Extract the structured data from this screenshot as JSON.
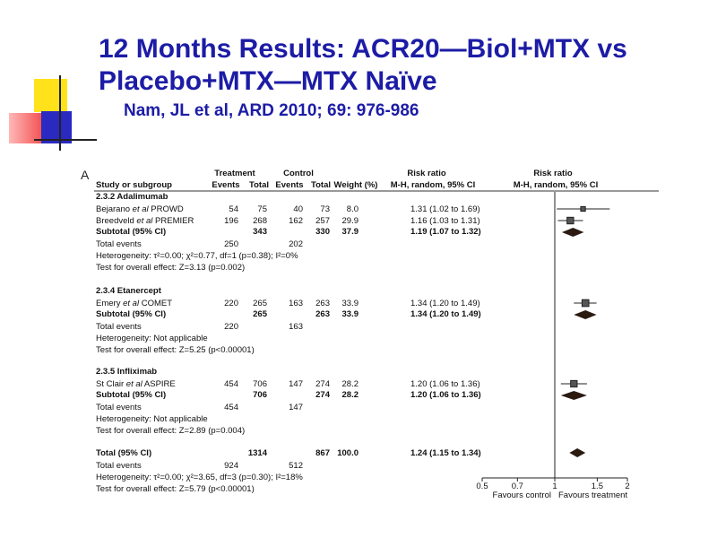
{
  "title": [
    "12 Months Results:  ACR20—Biol+MTX vs",
    "Placebo+MTX—MTX Naïve"
  ],
  "subtitle": "Nam, JL et al, ARD 2010; 69: 976-986",
  "panel_label": "A",
  "header": {
    "treatment": "Treatment",
    "control": "Control",
    "risk_ratio": "Risk ratio",
    "risk_ratio_plot": "Risk  ratio",
    "study": "Study or subgroup",
    "t_events": "Events",
    "t_total": "Total",
    "c_events": "Events",
    "c_total": "Total",
    "weight": "Weight (%)",
    "method": "M-H,  random, 95% CI",
    "method_plot": "M-H,  random, 95% CI"
  },
  "groups": [
    {
      "name": "2.3.2 Adalimumab",
      "studies": [
        {
          "name": "Bejarano",
          "etal": "et al",
          "trial": "PROWD",
          "t_events": "54",
          "t_total": "75",
          "c_events": "40",
          "c_total": "73",
          "weight": "8.0",
          "rr": {
            "value": 1.31,
            "low": 1.02,
            "high": 1.69,
            "label": "1.31 (1.02 to 1.69)"
          }
        },
        {
          "name": "Breedveld",
          "etal": "et al",
          "trial": "PREMIER",
          "t_events": "196",
          "t_total": "268",
          "c_events": "162",
          "c_total": "257",
          "weight": "29.9",
          "rr": {
            "value": 1.16,
            "low": 1.03,
            "high": 1.31,
            "label": "1.16 (1.03 to 1.31)"
          }
        }
      ],
      "subtotal": {
        "label": "Subtotal (95% CI)",
        "t_total": "343",
        "c_total": "330",
        "weight": "37.9",
        "rr": {
          "value": 1.19,
          "low": 1.07,
          "high": 1.32,
          "label": "1.19 (1.07 to 1.32)"
        }
      },
      "total_events": {
        "label": "Total events",
        "t": "250",
        "c": "202"
      },
      "heterogeneity": "Heterogeneity:  τ²=0.00;  χ²=0.77, df=1 (p=0.38); I²=0%",
      "test": "Test for overall effect: Z=3.13 (p=0.002)"
    },
    {
      "name": "2.3.4 Etanercept",
      "studies": [
        {
          "name": "Emery",
          "etal": "et al",
          "trial": "COMET",
          "t_events": "220",
          "t_total": "265",
          "c_events": "163",
          "c_total": "263",
          "weight": "33.9",
          "rr": {
            "value": 1.34,
            "low": 1.2,
            "high": 1.49,
            "label": "1.34 (1.20 to 1.49)"
          }
        }
      ],
      "subtotal": {
        "label": "Subtotal (95% CI)",
        "t_total": "265",
        "c_total": "263",
        "weight": "33.9",
        "rr": {
          "value": 1.34,
          "low": 1.2,
          "high": 1.49,
          "label": "1.34 (1.20 to 1.49)"
        }
      },
      "total_events": {
        "label": "Total events",
        "t": "220",
        "c": "163"
      },
      "heterogeneity": "Heterogeneity: Not applicable",
      "test": "Test for overall effect: Z=5.25 (p<0.00001)"
    },
    {
      "name": "2.3.5 Infliximab",
      "studies": [
        {
          "name": "St Clair",
          "etal": "et al",
          "trial": "ASPIRE",
          "t_events": "454",
          "t_total": "706",
          "c_events": "147",
          "c_total": "274",
          "weight": "28.2",
          "rr": {
            "value": 1.2,
            "low": 1.06,
            "high": 1.36,
            "label": "1.20 (1.06 to 1.36)"
          }
        }
      ],
      "subtotal": {
        "label": "Subtotal (95% CI)",
        "t_total": "706",
        "c_total": "274",
        "weight": "28.2",
        "rr": {
          "value": 1.2,
          "low": 1.06,
          "high": 1.36,
          "label": "1.20 (1.06 to 1.36)"
        }
      },
      "total_events": {
        "label": "Total events",
        "t": "454",
        "c": "147"
      },
      "heterogeneity": "Heterogeneity: Not applicable",
      "test": "Test for overall effect: Z=2.89 (p=0.004)"
    }
  ],
  "overall": {
    "label": "Total (95% CI)",
    "t_total": "1314",
    "c_total": "867",
    "weight": "100.0",
    "rr": {
      "value": 1.24,
      "low": 1.15,
      "high": 1.34,
      "label": "1.24 (1.15 to 1.34)"
    },
    "total_events": {
      "label": "Total events",
      "t": "924",
      "c": "512"
    },
    "heterogeneity": "Heterogeneity:  τ²=0.00;  χ²=3.65, df=3 (p=0.30); I²=18%",
    "test": "Test for overall effect: Z=5.79 (p<0.00001)"
  },
  "forest": {
    "log_scale": true,
    "xlim": [
      0.5,
      2
    ],
    "xticks": [
      0.5,
      0.7,
      1,
      1.5,
      2
    ],
    "null_line": 1,
    "left_label": "Favours control",
    "right_label": "Favours treatment"
  }
}
